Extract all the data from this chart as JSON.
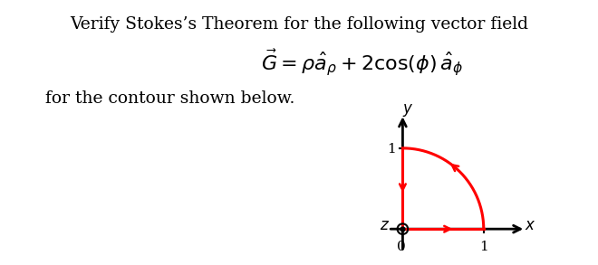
{
  "title_line1": "Verify Stokes’s Theorem for the following vector field",
  "formula": "$\\vec{G} = \\rho\\hat{a}_{\\rho} + 2\\cos(\\phi)\\, \\hat{a}_{\\phi}$",
  "subtitle": "for the contour shown below.",
  "bg_color": "#ffffff",
  "axis_color": "#000000",
  "contour_color": "#ff0000",
  "axis_label_x": "$x$",
  "axis_label_y": "$y$",
  "axis_label_z": "$z$",
  "font_size_title": 13.5,
  "font_size_formula": 16,
  "font_size_subtitle": 13.5,
  "font_size_diag": 12,
  "font_size_tick": 11
}
